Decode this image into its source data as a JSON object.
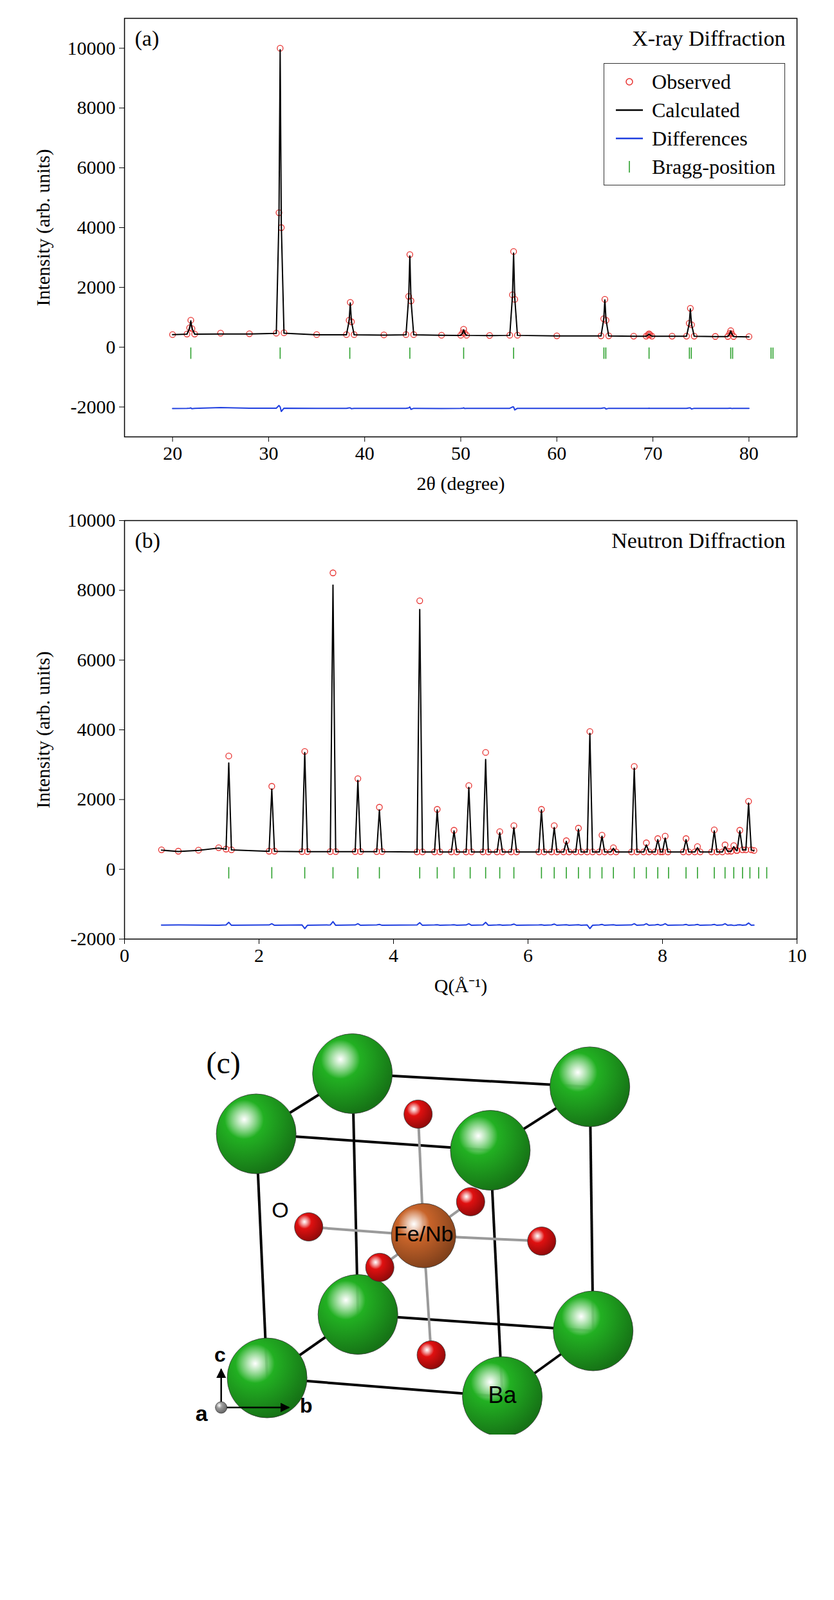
{
  "chart_data": [
    {
      "type": "line",
      "panel": "(a)",
      "title": "X-ray Diffraction",
      "xlabel": "2θ (degree)",
      "ylabel": "Intensity (arb. units)",
      "xlim": [
        15,
        85
      ],
      "xticks": [
        20,
        30,
        40,
        50,
        60,
        70,
        80
      ],
      "ylim": [
        -3000,
        11000
      ],
      "yticks": [
        -2000,
        0,
        2000,
        4000,
        6000,
        8000,
        10000
      ],
      "legend": "top-right",
      "x": [
        20,
        21.5,
        21.78,
        21.9,
        22.02,
        22.3,
        25,
        28,
        30.8,
        31.08,
        31.2,
        31.32,
        31.6,
        35,
        38.1,
        38.38,
        38.5,
        38.62,
        38.9,
        42,
        44.3,
        44.58,
        44.7,
        44.82,
        45.1,
        48,
        50.0,
        50.2,
        50.3,
        50.4,
        50.6,
        53,
        55.1,
        55.38,
        55.5,
        55.62,
        55.9,
        60,
        64.6,
        64.88,
        65.0,
        65.12,
        65.4,
        68,
        69.3,
        69.5,
        69.6,
        69.7,
        69.9,
        72,
        73.5,
        73.78,
        73.9,
        74.02,
        74.3,
        76.5,
        77.8,
        78.0,
        78.1,
        78.2,
        78.4,
        80
      ],
      "series": [
        {
          "name": "Observed",
          "type": "scatter",
          "marker": "circle",
          "color": "#e8312f",
          "values": [
            420,
            440,
            650,
            900,
            620,
            440,
            470,
            450,
            470,
            4500,
            10000,
            4000,
            480,
            420,
            420,
            900,
            1500,
            850,
            420,
            410,
            420,
            1700,
            3100,
            1550,
            420,
            400,
            400,
            480,
            600,
            470,
            400,
            390,
            400,
            1750,
            3200,
            1600,
            400,
            380,
            380,
            950,
            1600,
            900,
            380,
            370,
            370,
            410,
            450,
            410,
            370,
            370,
            370,
            800,
            1300,
            750,
            370,
            360,
            360,
            460,
            550,
            450,
            360,
            350
          ]
        },
        {
          "name": "Calculated",
          "type": "line",
          "color": "#000000",
          "values": [
            420,
            435,
            640,
            880,
            630,
            435,
            440,
            440,
            460,
            4400,
            9950,
            4100,
            470,
            415,
            415,
            880,
            1480,
            860,
            415,
            405,
            415,
            1680,
            3050,
            1580,
            415,
            400,
            395,
            470,
            580,
            470,
            395,
            385,
            395,
            1700,
            3150,
            1650,
            395,
            375,
            375,
            930,
            1580,
            920,
            375,
            365,
            365,
            405,
            440,
            405,
            365,
            365,
            365,
            780,
            1280,
            770,
            365,
            355,
            355,
            450,
            540,
            450,
            355,
            345
          ]
        },
        {
          "name": "Differences",
          "type": "line",
          "color": "#1f3fe0",
          "values": [
            -2050,
            -2045,
            -2040,
            -2030,
            -2060,
            -2045,
            -2020,
            -2040,
            -2040,
            -1950,
            -2000,
            -2150,
            -2040,
            -2045,
            -2045,
            -2030,
            -2030,
            -2060,
            -2045,
            -2045,
            -2045,
            -2030,
            -2000,
            -2080,
            -2045,
            -2050,
            -2045,
            -2040,
            -2030,
            -2050,
            -2045,
            -2045,
            -2045,
            -2000,
            -2000,
            -2100,
            -2045,
            -2045,
            -2045,
            -2030,
            -2030,
            -2070,
            -2045,
            -2045,
            -2045,
            -2045,
            -2040,
            -2045,
            -2045,
            -2045,
            -2045,
            -2030,
            -2030,
            -2070,
            -2045,
            -2045,
            -2045,
            -2040,
            -2040,
            -2050,
            -2045,
            -2045
          ]
        },
        {
          "name": "Bragg-position",
          "type": "tick",
          "marker": "vline",
          "color": "#2ca02c",
          "x": [
            21.9,
            31.2,
            38.45,
            44.7,
            50.3,
            55.5,
            64.9,
            65.1,
            69.6,
            73.8,
            74.0,
            78.1,
            78.3,
            82.3,
            82.5
          ],
          "values": [
            -200,
            -200,
            -200,
            -200,
            -200,
            -200,
            -200,
            -200,
            -200,
            -200,
            -200,
            -200,
            -200,
            -200,
            -200
          ]
        }
      ]
    },
    {
      "type": "line",
      "panel": "(b)",
      "title": "Neutron Diffraction",
      "xlabel": "Q(Å⁻¹)",
      "ylabel": "Intensity (arb. units)",
      "xlim": [
        0,
        10
      ],
      "xticks": [
        0,
        2,
        4,
        6,
        8,
        10
      ],
      "ylim": [
        -2000,
        10000
      ],
      "yticks": [
        -2000,
        0,
        2000,
        4000,
        6000,
        8000,
        10000
      ],
      "x": [
        0.55,
        0.8,
        1.1,
        1.4,
        1.51,
        1.55,
        1.59,
        2.15,
        2.19,
        2.23,
        2.64,
        2.68,
        2.72,
        3.06,
        3.1,
        3.14,
        3.43,
        3.47,
        3.51,
        3.75,
        3.79,
        3.83,
        4.35,
        4.39,
        4.43,
        4.61,
        4.65,
        4.69,
        4.86,
        4.9,
        4.94,
        5.08,
        5.12,
        5.16,
        5.33,
        5.37,
        5.41,
        5.54,
        5.58,
        5.62,
        5.75,
        5.79,
        5.83,
        6.16,
        6.2,
        6.24,
        6.35,
        6.39,
        6.43,
        6.53,
        6.57,
        6.61,
        6.71,
        6.75,
        6.79,
        6.88,
        6.92,
        6.96,
        7.06,
        7.1,
        7.14,
        7.23,
        7.27,
        7.31,
        7.54,
        7.58,
        7.62,
        7.72,
        7.76,
        7.8,
        7.89,
        7.93,
        7.97,
        8.0,
        8.04,
        8.08,
        8.31,
        8.35,
        8.39,
        8.48,
        8.52,
        8.56,
        8.73,
        8.77,
        8.81,
        8.89,
        8.93,
        8.97,
        9.02,
        9.06,
        9.1,
        9.11,
        9.15,
        9.19,
        9.24,
        9.28,
        9.32,
        9.36
      ],
      "series": [
        {
          "name": "Observed",
          "type": "scatter",
          "marker": "circle",
          "color": "#e8312f",
          "values": [
            560,
            520,
            550,
            620,
            580,
            3250,
            560,
            520,
            2380,
            520,
            510,
            3380,
            510,
            510,
            8500,
            510,
            510,
            2600,
            510,
            510,
            1780,
            510,
            500,
            7700,
            500,
            500,
            1720,
            500,
            500,
            1120,
            500,
            500,
            2400,
            500,
            500,
            3350,
            500,
            500,
            1080,
            500,
            500,
            1250,
            500,
            500,
            1720,
            500,
            500,
            1250,
            500,
            500,
            820,
            500,
            500,
            1180,
            500,
            500,
            3950,
            500,
            500,
            980,
            500,
            500,
            620,
            500,
            500,
            2950,
            500,
            500,
            760,
            500,
            500,
            880,
            500,
            500,
            950,
            500,
            500,
            880,
            500,
            500,
            650,
            500,
            500,
            1130,
            500,
            500,
            700,
            520,
            520,
            680,
            540,
            540,
            1120,
            560,
            560,
            1950,
            560,
            540
          ]
        },
        {
          "name": "Calculated",
          "type": "line",
          "color": "#000000",
          "values": [
            550,
            510,
            545,
            610,
            575,
            3050,
            555,
            515,
            2300,
            515,
            505,
            3350,
            505,
            505,
            8150,
            505,
            505,
            2550,
            505,
            505,
            1700,
            505,
            495,
            7450,
            495,
            495,
            1700,
            495,
            495,
            1100,
            495,
            495,
            2350,
            495,
            495,
            3150,
            495,
            495,
            1050,
            495,
            495,
            1200,
            495,
            495,
            1700,
            495,
            495,
            1200,
            495,
            495,
            800,
            495,
            495,
            1150,
            495,
            495,
            3900,
            495,
            495,
            950,
            495,
            495,
            600,
            495,
            495,
            2900,
            495,
            495,
            700,
            495,
            495,
            850,
            495,
            495,
            900,
            495,
            495,
            850,
            495,
            495,
            620,
            495,
            495,
            1100,
            495,
            495,
            650,
            515,
            515,
            650,
            535,
            535,
            1100,
            555,
            555,
            1900,
            555,
            535
          ]
        },
        {
          "name": "Differences",
          "type": "line",
          "color": "#1f3fe0",
          "values": [
            -1600,
            -1595,
            -1600,
            -1605,
            -1595,
            -1520,
            -1605,
            -1595,
            -1560,
            -1605,
            -1595,
            -1700,
            -1605,
            -1595,
            -1500,
            -1605,
            -1595,
            -1560,
            -1605,
            -1595,
            -1580,
            -1605,
            -1595,
            -1530,
            -1605,
            -1595,
            -1590,
            -1605,
            -1595,
            -1590,
            -1605,
            -1595,
            -1560,
            -1605,
            -1595,
            -1520,
            -1605,
            -1595,
            -1590,
            -1605,
            -1595,
            -1570,
            -1605,
            -1595,
            -1590,
            -1605,
            -1595,
            -1570,
            -1605,
            -1595,
            -1590,
            -1605,
            -1595,
            -1590,
            -1605,
            -1595,
            -1700,
            -1605,
            -1595,
            -1580,
            -1605,
            -1595,
            -1590,
            -1605,
            -1595,
            -1560,
            -1605,
            -1595,
            -1560,
            -1605,
            -1595,
            -1580,
            -1605,
            -1595,
            -1560,
            -1605,
            -1595,
            -1580,
            -1605,
            -1595,
            -1580,
            -1605,
            -1595,
            -1580,
            -1605,
            -1595,
            -1560,
            -1605,
            -1595,
            -1610,
            -1605,
            -1595,
            -1590,
            -1605,
            -1595,
            -1540,
            -1605,
            -1600
          ]
        },
        {
          "name": "Bragg-position",
          "type": "tick",
          "marker": "vline",
          "color": "#2ca02c",
          "x": [
            1.55,
            2.19,
            2.68,
            3.1,
            3.47,
            3.79,
            4.39,
            4.65,
            4.9,
            5.14,
            5.37,
            5.58,
            5.79,
            6.2,
            6.39,
            6.57,
            6.75,
            6.92,
            7.1,
            7.27,
            7.58,
            7.76,
            7.93,
            8.09,
            8.35,
            8.52,
            8.77,
            8.93,
            9.06,
            9.19,
            9.3,
            9.43,
            9.55
          ],
          "values": [
            -100,
            -100,
            -100,
            -100,
            -100,
            -100,
            -100,
            -100,
            -100,
            -100,
            -100,
            -100,
            -100,
            -100,
            -100,
            -100,
            -100,
            -100,
            -100,
            -100,
            -100,
            -100,
            -100,
            -100,
            -100,
            -100,
            -100,
            -100,
            -100,
            -100,
            -100,
            -100,
            -100
          ]
        }
      ]
    }
  ],
  "diagram": {
    "panel": "(c)",
    "atoms": {
      "corner": {
        "label": "Ba",
        "color": "#22b022"
      },
      "center": {
        "label": "Fe/Nb",
        "color": "#c8642a"
      },
      "face": {
        "label": "O",
        "color": "#e01010"
      }
    },
    "axes": {
      "a": "a",
      "b": "b",
      "c": "c"
    }
  }
}
